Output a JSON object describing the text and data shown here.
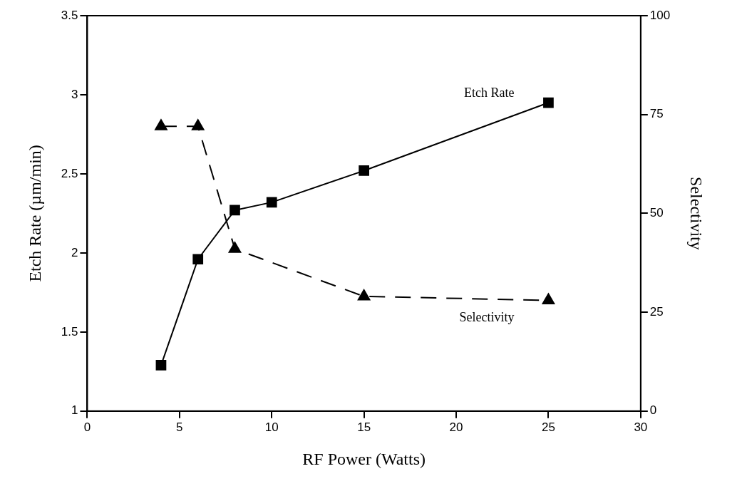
{
  "chart_data": {
    "type": "line",
    "xlabel": "RF Power (Watts)",
    "ylabel": "Etch Rate (µm/min)",
    "y2label": "Selectivity",
    "x": [
      4,
      6,
      8,
      10,
      15,
      25
    ],
    "series": [
      {
        "name": "Etch Rate",
        "color": "#000000",
        "marker": "square",
        "line_style": "solid",
        "values": [
          1.29,
          1.96,
          2.27,
          2.32,
          2.52,
          2.95
        ]
      },
      {
        "name": "Selectivity",
        "color": "#000000",
        "marker": "triangle",
        "line_style": "dashed",
        "axis": "y2",
        "x": [
          4,
          6,
          8,
          15,
          25
        ],
        "values": [
          72,
          72,
          41,
          29,
          28
        ]
      }
    ],
    "xlim": [
      0,
      30
    ],
    "xticks": [
      0,
      5,
      10,
      15,
      20,
      25,
      30
    ],
    "ylim": [
      1,
      3.5
    ],
    "yticks": [
      1,
      1.5,
      2,
      2.5,
      3,
      3.5
    ],
    "y2lim": [
      0,
      100
    ],
    "y2ticks": [
      0,
      25,
      50,
      75,
      100
    ],
    "grid": false,
    "legend": false
  }
}
